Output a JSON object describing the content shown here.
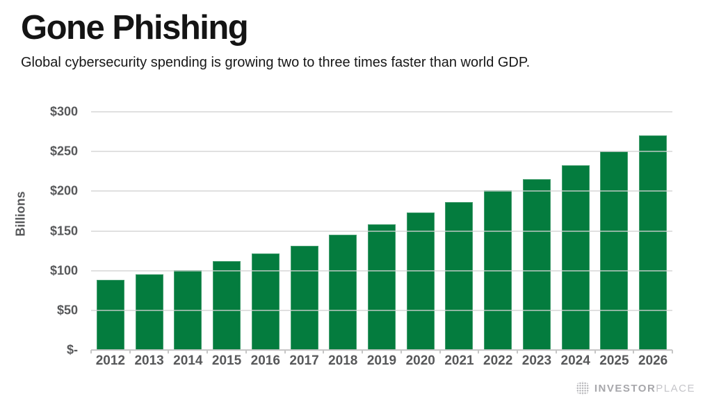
{
  "header": {
    "title": "Gone Phishing",
    "subtitle": "Global cybersecurity spending is growing two to three times faster than world GDP."
  },
  "chart_data": {
    "type": "bar",
    "title": "Gone Phishing",
    "subtitle": "Global cybersecurity spending is growing two to three times faster than world GDP.",
    "categories": [
      "2012",
      "2013",
      "2014",
      "2015",
      "2016",
      "2017",
      "2018",
      "2019",
      "2020",
      "2021",
      "2022",
      "2023",
      "2024",
      "2025",
      "2026"
    ],
    "values": [
      88,
      95,
      101,
      112,
      122,
      131,
      145,
      158,
      173,
      186,
      201,
      215,
      233,
      250,
      270
    ],
    "series_name": "Global cybersecurity spending ($ billions)",
    "xlabel": "",
    "ylabel": "Billions",
    "ylim": [
      0,
      300
    ],
    "ytick_interval": 50,
    "ytick_labels": [
      "$-",
      "$50",
      "$100",
      "$150",
      "$200",
      "$250",
      "$300"
    ],
    "grid": true,
    "gridlines_over_bars": true,
    "legend": "none",
    "bar_color": "#047c3e"
  },
  "footer": {
    "brand_primary": "INVESTOR",
    "brand_secondary": "PLACE"
  },
  "colors": {
    "bar": "#047c3e",
    "axis_text": "#57585a",
    "gridline": "#d9d9d9",
    "axis_line": "#c6c6c6",
    "title_text": "#141414",
    "brand_primary": "#a7a7ab",
    "brand_secondary": "#c5c5c9"
  }
}
